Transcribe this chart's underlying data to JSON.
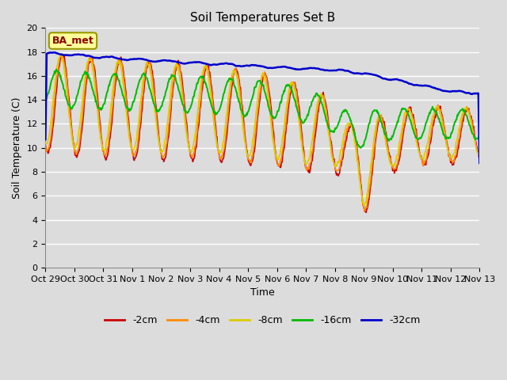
{
  "title": "Soil Temperatures Set B",
  "xlabel": "Time",
  "ylabel": "Soil Temperature (C)",
  "ylim": [
    0,
    20
  ],
  "yticks": [
    0,
    2,
    4,
    6,
    8,
    10,
    12,
    14,
    16,
    18,
    20
  ],
  "xtick_labels": [
    "Oct 29",
    "Oct 30",
    "Oct 31",
    "Nov 1",
    "Nov 2",
    "Nov 3",
    "Nov 4",
    "Nov 5",
    "Nov 6",
    "Nov 7",
    "Nov 8",
    "Nov 9",
    "Nov 10",
    "Nov 11",
    "Nov 12",
    "Nov 13"
  ],
  "annotation_text": "BA_met",
  "annotation_color": "#8B0000",
  "annotation_bg": "#FFFF99",
  "annotation_edge": "#999900",
  "line_colors": {
    "-2cm": "#CC0000",
    "-4cm": "#FF8C00",
    "-8cm": "#DDCC00",
    "-16cm": "#00BB00",
    "-32cm": "#0000CC"
  },
  "bg_color": "#DCDCDC",
  "plot_bg_color": "#DCDCDC",
  "grid_color": "#FFFFFF",
  "title_fontsize": 11,
  "axis_label_fontsize": 9,
  "tick_fontsize": 8,
  "legend_fontsize": 9
}
